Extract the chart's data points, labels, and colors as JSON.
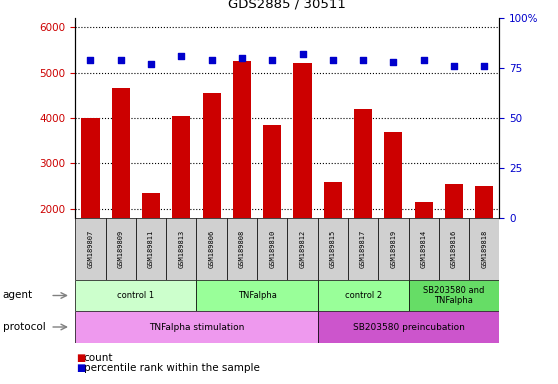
{
  "title": "GDS2885 / 30511",
  "samples": [
    "GSM189807",
    "GSM189809",
    "GSM189811",
    "GSM189813",
    "GSM189806",
    "GSM189808",
    "GSM189810",
    "GSM189812",
    "GSM189815",
    "GSM189817",
    "GSM189819",
    "GSM189814",
    "GSM189816",
    "GSM189818"
  ],
  "counts": [
    4000,
    4650,
    2350,
    4050,
    4550,
    5250,
    3850,
    5200,
    2600,
    4200,
    3700,
    2150,
    2550,
    2500
  ],
  "percentiles": [
    79,
    79,
    77,
    81,
    79,
    80,
    79,
    82,
    79,
    79,
    78,
    79,
    76,
    76
  ],
  "ylim_left": [
    1800,
    6200
  ],
  "ylim_right": [
    0,
    100
  ],
  "yticks_left": [
    2000,
    3000,
    4000,
    5000,
    6000
  ],
  "yticks_right": [
    0,
    25,
    50,
    75,
    100
  ],
  "bar_color": "#cc0000",
  "dot_color": "#0000cc",
  "agent_groups": [
    {
      "label": "control 1",
      "start": 0,
      "end": 4,
      "color": "#ccffcc"
    },
    {
      "label": "TNFalpha",
      "start": 4,
      "end": 8,
      "color": "#99ff99"
    },
    {
      "label": "control 2",
      "start": 8,
      "end": 11,
      "color": "#99ff99"
    },
    {
      "label": "SB203580 and\nTNFalpha",
      "start": 11,
      "end": 14,
      "color": "#66dd66"
    }
  ],
  "protocol_groups": [
    {
      "label": "TNFalpha stimulation",
      "start": 0,
      "end": 8,
      "color": "#ee99ee"
    },
    {
      "label": "SB203580 preincubation",
      "start": 8,
      "end": 14,
      "color": "#cc55cc"
    }
  ],
  "agent_label": "agent",
  "protocol_label": "protocol",
  "legend_count_label": "count",
  "legend_pct_label": "percentile rank within the sample",
  "tick_label_color_left": "#cc0000",
  "tick_label_color_right": "#0000cc",
  "sample_box_color": "#d0d0d0"
}
